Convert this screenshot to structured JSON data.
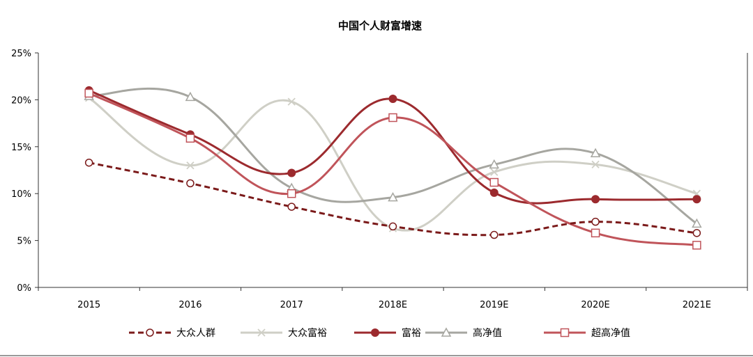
{
  "chart_data": {
    "type": "line",
    "title": "中国个人财富增速",
    "xlabel": "",
    "ylabel": "",
    "categories": [
      "2015",
      "2016",
      "2017",
      "2018E",
      "2019E",
      "2020E",
      "2021E"
    ],
    "ylim": [
      0,
      25
    ],
    "yticks": [
      0,
      5,
      10,
      15,
      20,
      25
    ],
    "ytick_labels": [
      "0%",
      "5%",
      "10%",
      "15%",
      "20%",
      "25%"
    ],
    "grid": false,
    "legend_position": "bottom",
    "series": [
      {
        "name": "大众人群",
        "values": [
          13.3,
          11.1,
          8.6,
          6.5,
          5.6,
          7.0,
          5.8
        ],
        "color": "#7b1a1a",
        "marker": "circle-open",
        "line": "dashed"
      },
      {
        "name": "大众富裕",
        "values": [
          20.2,
          13.0,
          19.8,
          6.3,
          12.3,
          13.1,
          10.0
        ],
        "color": "#cfcfc6",
        "marker": "x",
        "line": "solid"
      },
      {
        "name": "富裕",
        "values": [
          21.0,
          16.3,
          12.2,
          20.1,
          10.1,
          9.4,
          9.4
        ],
        "color": "#9c2a2e",
        "marker": "circle-filled",
        "line": "solid"
      },
      {
        "name": "高净值",
        "values": [
          20.4,
          20.3,
          10.6,
          9.6,
          13.1,
          14.3,
          6.8
        ],
        "color": "#a6a6a0",
        "marker": "triangle-open",
        "line": "solid"
      },
      {
        "name": "超高净值",
        "values": [
          20.7,
          15.9,
          10.0,
          18.1,
          11.2,
          5.8,
          4.5
        ],
        "color": "#c0545a",
        "marker": "square-open",
        "line": "solid"
      }
    ]
  }
}
